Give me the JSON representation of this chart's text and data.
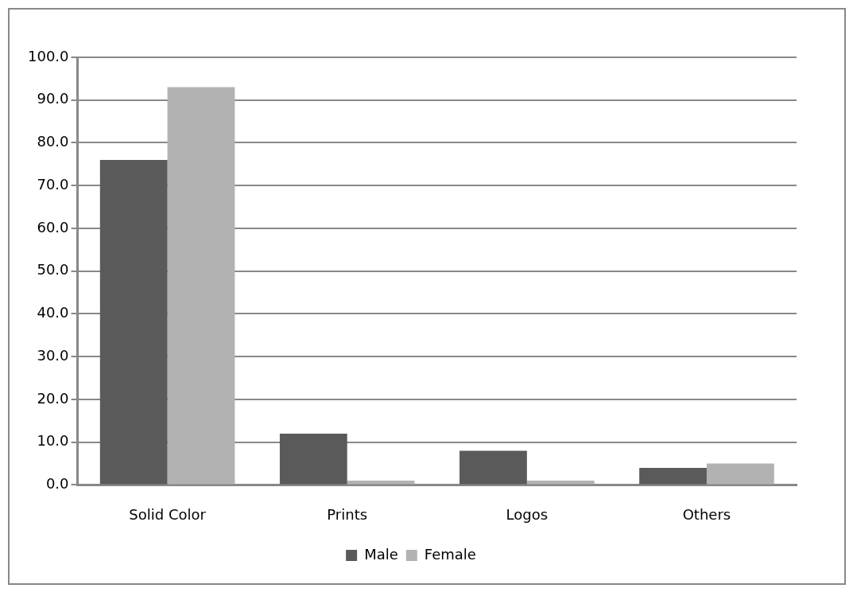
{
  "chart_data": {
    "type": "bar",
    "categories": [
      "Solid Color",
      "Prints",
      "Logos",
      "Others"
    ],
    "series": [
      {
        "name": "Male",
        "color": "#5a5a5a",
        "values": [
          76,
          12,
          8,
          4
        ]
      },
      {
        "name": "Female",
        "color": "#b2b2b2",
        "values": [
          93,
          1,
          1,
          5
        ]
      }
    ],
    "ylim": [
      0,
      100
    ],
    "yticks": [
      {
        "value": 0,
        "label": "0.0"
      },
      {
        "value": 10,
        "label": "10.0"
      },
      {
        "value": 20,
        "label": "20.0"
      },
      {
        "value": 30,
        "label": "30.0"
      },
      {
        "value": 40,
        "label": "40.0"
      },
      {
        "value": 50,
        "label": "50.0"
      },
      {
        "value": 60,
        "label": "60.0"
      },
      {
        "value": 70,
        "label": "70.0"
      },
      {
        "value": 80,
        "label": "80.0"
      },
      {
        "value": 90,
        "label": "90.0"
      },
      {
        "value": 100,
        "label": "100.0"
      }
    ],
    "grid": "y",
    "legend": "bottom"
  }
}
